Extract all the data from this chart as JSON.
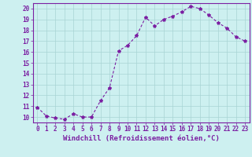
{
  "x": [
    0,
    1,
    2,
    3,
    4,
    5,
    6,
    7,
    8,
    9,
    10,
    11,
    12,
    13,
    14,
    15,
    16,
    17,
    18,
    19,
    20,
    21,
    22,
    23
  ],
  "y": [
    10.9,
    10.1,
    9.9,
    9.8,
    10.3,
    10.0,
    10.0,
    11.5,
    12.7,
    16.1,
    16.6,
    17.5,
    19.2,
    18.4,
    19.0,
    19.3,
    19.7,
    20.2,
    20.0,
    19.4,
    18.7,
    18.2,
    17.4,
    17.0
  ],
  "line_color": "#7B1FA2",
  "marker": "*",
  "marker_size": 3,
  "background_color": "#cdf0f0",
  "grid_color": "#a8d4d4",
  "xlabel": "Windchill (Refroidissement éolien,°C)",
  "ylabel": "",
  "ylim": [
    10,
    20
  ],
  "xlim": [
    -0.5,
    23.5
  ],
  "xticks": [
    0,
    1,
    2,
    3,
    4,
    5,
    6,
    7,
    8,
    9,
    10,
    11,
    12,
    13,
    14,
    15,
    16,
    17,
    18,
    19,
    20,
    21,
    22,
    23
  ],
  "yticks": [
    10,
    11,
    12,
    13,
    14,
    15,
    16,
    17,
    18,
    19,
    20
  ],
  "tick_color": "#7B1FA2",
  "label_color": "#7B1FA2",
  "xlabel_fontsize": 6.5,
  "tick_fontsize": 5.5,
  "line_width": 0.8,
  "spine_color": "#7B1FA2"
}
